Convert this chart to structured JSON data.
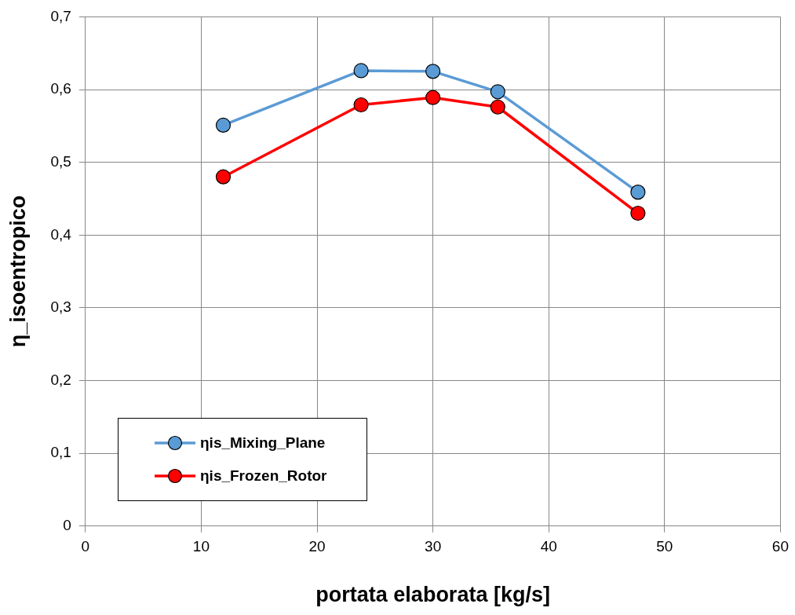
{
  "chart_data": {
    "type": "line",
    "xlabel": "portata elaborata [kg/s]",
    "ylabel": "η_isoentropico",
    "xlim": [
      0,
      60
    ],
    "xticks": [
      0,
      10,
      20,
      30,
      40,
      50,
      60
    ],
    "ylim": [
      0,
      0.7
    ],
    "yticks": [
      {
        "value": 0,
        "label": "0"
      },
      {
        "value": 0.1,
        "label": "0,1"
      },
      {
        "value": 0.2,
        "label": "0,2"
      },
      {
        "value": 0.3,
        "label": "0,3"
      },
      {
        "value": 0.4,
        "label": "0,4"
      },
      {
        "value": 0.5,
        "label": "0,5"
      },
      {
        "value": 0.6,
        "label": "0,6"
      },
      {
        "value": 0.7,
        "label": "0,7"
      }
    ],
    "x": [
      11.9,
      23.8,
      30,
      35.6,
      47.7
    ],
    "series": [
      {
        "name": "ηis_Mixing_Plane",
        "color": "#5b9bd5",
        "values": [
          0.551,
          0.626,
          0.625,
          0.597,
          0.459
        ]
      },
      {
        "name": "ηis_Frozen_Rotor",
        "color": "#ff0000",
        "values": [
          0.48,
          0.579,
          0.589,
          0.576,
          0.43
        ]
      }
    ],
    "grid": true,
    "legend": "bottom left",
    "marker": "circle",
    "line_style": "solid"
  }
}
